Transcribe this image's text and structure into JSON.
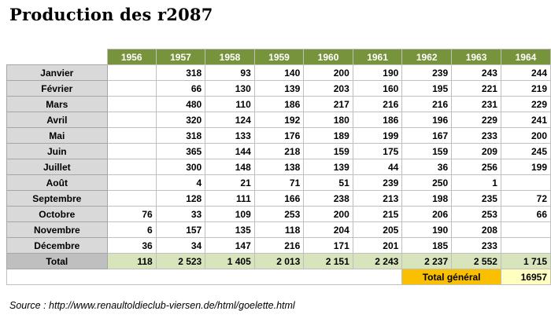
{
  "title": "Production des r2087",
  "years": [
    "1956",
    "1957",
    "1958",
    "1959",
    "1960",
    "1961",
    "1962",
    "1963",
    "1964"
  ],
  "rows": [
    {
      "month": "Janvier",
      "values": [
        "",
        "318",
        "93",
        "140",
        "200",
        "190",
        "239",
        "243",
        "244"
      ]
    },
    {
      "month": "Février",
      "values": [
        "",
        "66",
        "130",
        "139",
        "203",
        "160",
        "195",
        "221",
        "219"
      ]
    },
    {
      "month": "Mars",
      "values": [
        "",
        "480",
        "110",
        "186",
        "217",
        "216",
        "216",
        "231",
        "229"
      ]
    },
    {
      "month": "Avril",
      "values": [
        "",
        "320",
        "124",
        "192",
        "180",
        "186",
        "196",
        "229",
        "241"
      ]
    },
    {
      "month": "Mai",
      "values": [
        "",
        "318",
        "133",
        "176",
        "189",
        "199",
        "167",
        "233",
        "200"
      ]
    },
    {
      "month": "Juin",
      "values": [
        "",
        "365",
        "144",
        "218",
        "159",
        "175",
        "159",
        "209",
        "245"
      ]
    },
    {
      "month": "Juillet",
      "values": [
        "",
        "300",
        "148",
        "138",
        "139",
        "44",
        "36",
        "256",
        "199"
      ]
    },
    {
      "month": "Août",
      "values": [
        "",
        "4",
        "21",
        "71",
        "51",
        "239",
        "250",
        "1",
        ""
      ]
    },
    {
      "month": "Septembre",
      "values": [
        "",
        "128",
        "111",
        "166",
        "238",
        "213",
        "198",
        "235",
        "72"
      ]
    },
    {
      "month": "Octobre",
      "values": [
        "76",
        "33",
        "109",
        "253",
        "200",
        "215",
        "206",
        "253",
        "66"
      ]
    },
    {
      "month": "Novembre",
      "values": [
        "6",
        "157",
        "135",
        "118",
        "204",
        "205",
        "190",
        "208",
        ""
      ]
    },
    {
      "month": "Décembre",
      "values": [
        "36",
        "34",
        "147",
        "216",
        "171",
        "201",
        "185",
        "233",
        ""
      ]
    }
  ],
  "total": {
    "label": "Total",
    "values": [
      "118",
      "2 523",
      "1 405",
      "2 013",
      "2 151",
      "2 243",
      "2 237",
      "2 552",
      "1 715"
    ]
  },
  "grand_total": {
    "label": "Total général",
    "value": "16957"
  },
  "source": "Source : http://www.renaultoldieclub-viersen.de/html/goelette.html"
}
